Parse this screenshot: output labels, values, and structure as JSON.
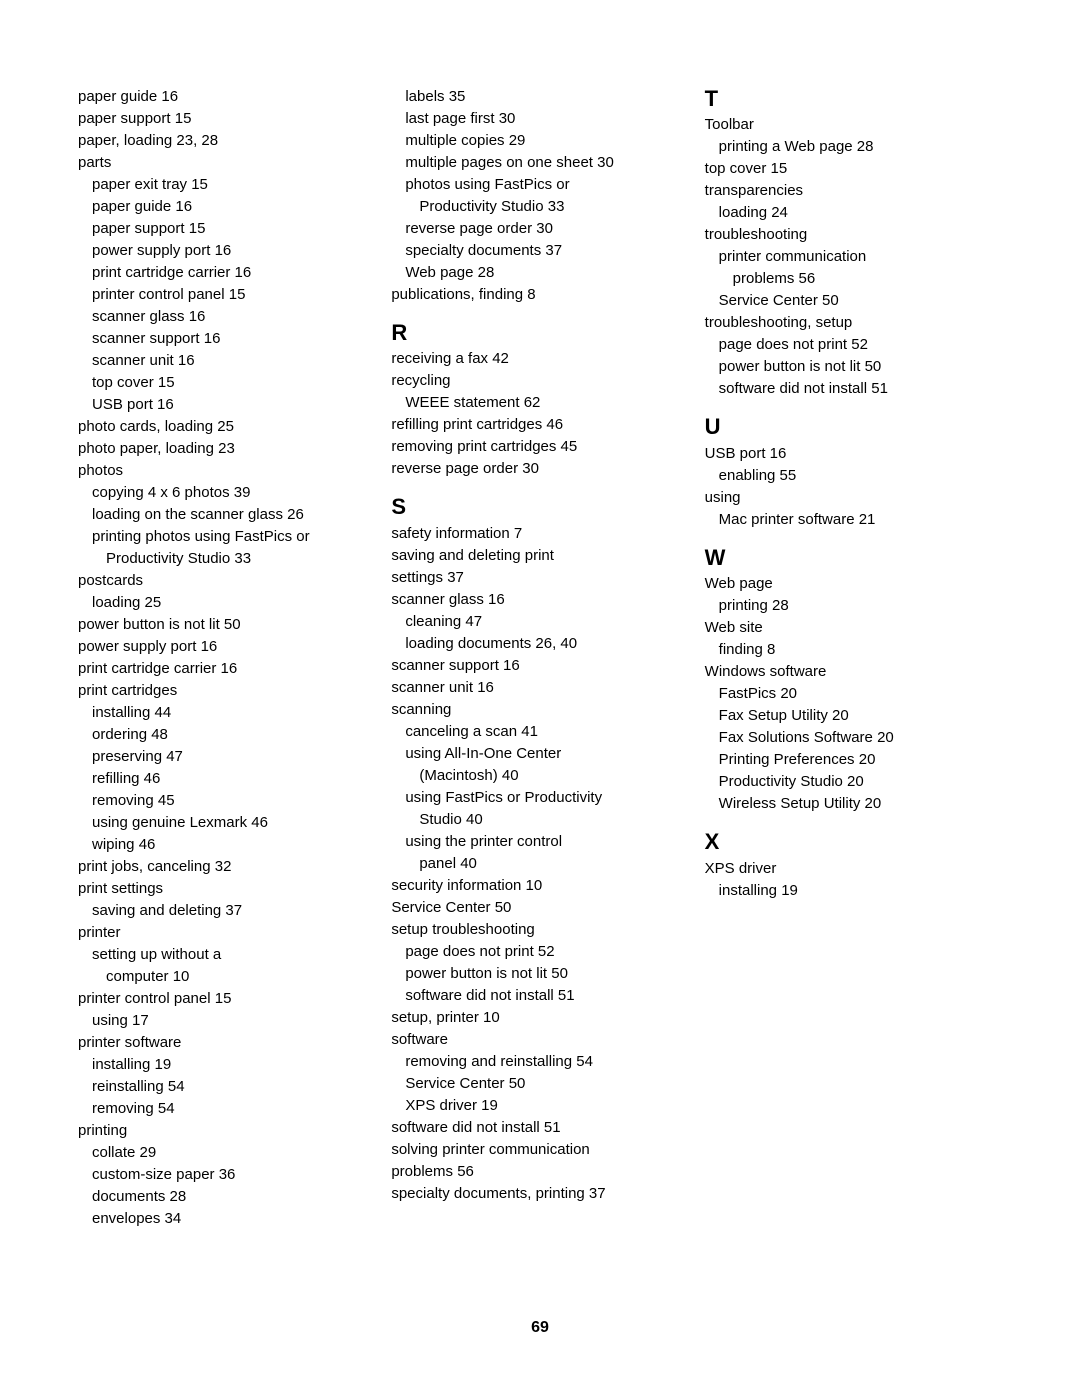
{
  "pageNumber": "69",
  "col1": [
    {
      "t": "paper guide  16",
      "i": 0
    },
    {
      "t": "paper support  15",
      "i": 0
    },
    {
      "t": "paper, loading  23, 28",
      "i": 0
    },
    {
      "t": "parts",
      "i": 0
    },
    {
      "t": "paper exit tray  15",
      "i": 1
    },
    {
      "t": "paper guide  16",
      "i": 1
    },
    {
      "t": "paper support  15",
      "i": 1
    },
    {
      "t": "power supply port  16",
      "i": 1
    },
    {
      "t": "print cartridge carrier  16",
      "i": 1
    },
    {
      "t": "printer control panel  15",
      "i": 1
    },
    {
      "t": "scanner glass  16",
      "i": 1
    },
    {
      "t": "scanner support  16",
      "i": 1
    },
    {
      "t": "scanner unit  16",
      "i": 1
    },
    {
      "t": "top cover  15",
      "i": 1
    },
    {
      "t": "USB port  16",
      "i": 1
    },
    {
      "t": "photo cards, loading  25",
      "i": 0
    },
    {
      "t": "photo paper, loading  23",
      "i": 0
    },
    {
      "t": "photos",
      "i": 0
    },
    {
      "t": "copying 4 x 6 photos  39",
      "i": 1
    },
    {
      "t": "loading on the scanner glass  26",
      "i": 1
    },
    {
      "t": "printing photos using FastPics or",
      "i": 1
    },
    {
      "t": "Productivity Studio  33",
      "i": 2
    },
    {
      "t": "postcards",
      "i": 0
    },
    {
      "t": "loading  25",
      "i": 1
    },
    {
      "t": "power button is not lit  50",
      "i": 0
    },
    {
      "t": "power supply port  16",
      "i": 0
    },
    {
      "t": "print cartridge carrier  16",
      "i": 0
    },
    {
      "t": "print cartridges",
      "i": 0
    },
    {
      "t": "installing  44",
      "i": 1
    },
    {
      "t": "ordering  48",
      "i": 1
    },
    {
      "t": "preserving  47",
      "i": 1
    },
    {
      "t": "refilling  46",
      "i": 1
    },
    {
      "t": "removing  45",
      "i": 1
    },
    {
      "t": "using genuine Lexmark  46",
      "i": 1
    },
    {
      "t": "wiping  46",
      "i": 1
    },
    {
      "t": "print jobs, canceling  32",
      "i": 0
    },
    {
      "t": "print settings",
      "i": 0
    },
    {
      "t": "saving and deleting  37",
      "i": 1
    },
    {
      "t": "printer",
      "i": 0
    },
    {
      "t": "setting up without a",
      "i": 1
    },
    {
      "t": "computer  10",
      "i": 2
    },
    {
      "t": "printer control panel  15",
      "i": 0
    },
    {
      "t": "using  17",
      "i": 1
    },
    {
      "t": "printer software",
      "i": 0
    },
    {
      "t": "installing  19",
      "i": 1
    },
    {
      "t": "reinstalling  54",
      "i": 1
    },
    {
      "t": "removing  54",
      "i": 1
    },
    {
      "t": "printing",
      "i": 0
    },
    {
      "t": "collate  29",
      "i": 1
    },
    {
      "t": "custom-size paper  36",
      "i": 1
    },
    {
      "t": "documents  28",
      "i": 1
    },
    {
      "t": "envelopes  34",
      "i": 1
    }
  ],
  "col2": [
    {
      "t": "labels  35",
      "i": 1
    },
    {
      "t": "last page first  30",
      "i": 1
    },
    {
      "t": "multiple copies  29",
      "i": 1
    },
    {
      "t": "multiple pages on one sheet  30",
      "i": 1
    },
    {
      "t": "photos using FastPics or",
      "i": 1
    },
    {
      "t": "Productivity Studio  33",
      "i": 2
    },
    {
      "t": "reverse page order  30",
      "i": 1
    },
    {
      "t": "specialty documents  37",
      "i": 1
    },
    {
      "t": "Web page  28",
      "i": 1
    },
    {
      "t": "publications, finding  8",
      "i": 0
    },
    {
      "letter": "R"
    },
    {
      "t": "receiving a fax  42",
      "i": 0
    },
    {
      "t": "recycling",
      "i": 0
    },
    {
      "t": "WEEE statement  62",
      "i": 1
    },
    {
      "t": "refilling print cartridges  46",
      "i": 0
    },
    {
      "t": "removing print cartridges  45",
      "i": 0
    },
    {
      "t": "reverse page order  30",
      "i": 0
    },
    {
      "letter": "S"
    },
    {
      "t": "safety information  7",
      "i": 0
    },
    {
      "t": "saving and deleting print",
      "i": 0
    },
    {
      "t": "settings  37",
      "i": 0
    },
    {
      "t": "scanner glass  16",
      "i": 0
    },
    {
      "t": "cleaning  47",
      "i": 1
    },
    {
      "t": "loading documents  26, 40",
      "i": 1
    },
    {
      "t": "scanner support  16",
      "i": 0
    },
    {
      "t": "scanner unit  16",
      "i": 0
    },
    {
      "t": "scanning",
      "i": 0
    },
    {
      "t": "canceling a scan  41",
      "i": 1
    },
    {
      "t": "using All-In-One Center",
      "i": 1
    },
    {
      "t": "(Macintosh)  40",
      "i": 2
    },
    {
      "t": "using FastPics or Productivity",
      "i": 1
    },
    {
      "t": "Studio  40",
      "i": 2
    },
    {
      "t": "using the printer control",
      "i": 1
    },
    {
      "t": "panel  40",
      "i": 2
    },
    {
      "t": "security information  10",
      "i": 0
    },
    {
      "t": "Service Center  50",
      "i": 0
    },
    {
      "t": "setup troubleshooting",
      "i": 0
    },
    {
      "t": "page does not print  52",
      "i": 1
    },
    {
      "t": "power button is not lit  50",
      "i": 1
    },
    {
      "t": "software did not install  51",
      "i": 1
    },
    {
      "t": "setup, printer  10",
      "i": 0
    },
    {
      "t": "software",
      "i": 0
    },
    {
      "t": "removing and reinstalling  54",
      "i": 1
    },
    {
      "t": "Service Center  50",
      "i": 1
    },
    {
      "t": "XPS driver  19",
      "i": 1
    },
    {
      "t": "software did not install  51",
      "i": 0
    },
    {
      "t": "solving printer communication",
      "i": 0
    },
    {
      "t": "problems  56",
      "i": 0
    },
    {
      "t": "specialty documents, printing  37",
      "i": 0
    }
  ],
  "col3": [
    {
      "letter": "T"
    },
    {
      "t": "Toolbar",
      "i": 0
    },
    {
      "t": "printing a Web page  28",
      "i": 1
    },
    {
      "t": "top cover  15",
      "i": 0
    },
    {
      "t": "transparencies",
      "i": 0
    },
    {
      "t": "loading  24",
      "i": 1
    },
    {
      "t": "troubleshooting",
      "i": 0
    },
    {
      "t": "printer communication",
      "i": 1
    },
    {
      "t": "problems  56",
      "i": 2
    },
    {
      "t": "Service Center  50",
      "i": 1
    },
    {
      "t": "troubleshooting, setup",
      "i": 0
    },
    {
      "t": "page does not print  52",
      "i": 1
    },
    {
      "t": "power button is not lit  50",
      "i": 1
    },
    {
      "t": "software did not install  51",
      "i": 1
    },
    {
      "letter": "U"
    },
    {
      "t": "USB port  16",
      "i": 0
    },
    {
      "t": "enabling  55",
      "i": 1
    },
    {
      "t": "using",
      "i": 0
    },
    {
      "t": "Mac printer software  21",
      "i": 1
    },
    {
      "letter": "W"
    },
    {
      "t": "Web page",
      "i": 0
    },
    {
      "t": "printing  28",
      "i": 1
    },
    {
      "t": "Web site",
      "i": 0
    },
    {
      "t": "finding  8",
      "i": 1
    },
    {
      "t": "Windows software",
      "i": 0
    },
    {
      "t": "FastPics  20",
      "i": 1
    },
    {
      "t": "Fax Setup Utility  20",
      "i": 1
    },
    {
      "t": "Fax Solutions Software  20",
      "i": 1
    },
    {
      "t": "Printing Preferences  20",
      "i": 1
    },
    {
      "t": "Productivity Studio  20",
      "i": 1
    },
    {
      "t": "Wireless Setup Utility  20",
      "i": 1
    },
    {
      "letter": "X"
    },
    {
      "t": "XPS driver",
      "i": 0
    },
    {
      "t": "installing  19",
      "i": 1
    }
  ]
}
